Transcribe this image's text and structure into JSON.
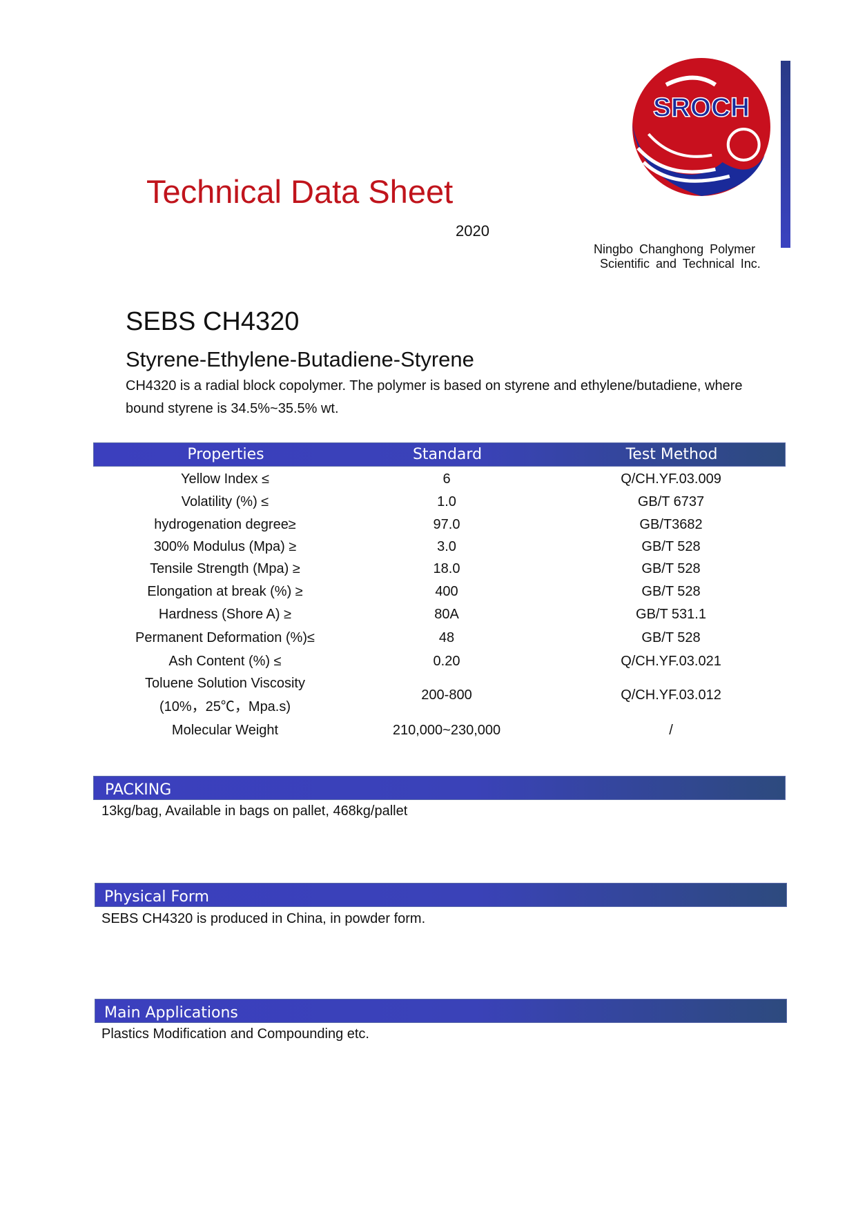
{
  "header": {
    "title": "Technical Data Sheet",
    "year": "2020",
    "company_line1": "Ningbo Changhong Polymer",
    "company_line2": "Scientific and Technical Inc.",
    "logo_text": "SROCH",
    "logo_colors": {
      "red": "#c8101e",
      "blue": "#1a2a9a"
    }
  },
  "product": {
    "name": "SEBS CH4320",
    "subtitle": "Styrene-Ethylene-Butadiene-Styrene",
    "description": "CH4320 is a radial block copolymer. The polymer is based on styrene and ethylene/butadiene, where bound styrene is 34.5%~35.5% wt."
  },
  "table": {
    "headers": [
      "Properties",
      "Standard",
      "Test Method"
    ],
    "rows": [
      [
        "Yellow Index ≤",
        "6",
        "Q/CH.YF.03.009"
      ],
      [
        "Volatility (%) ≤",
        "1.0",
        "GB/T 6737"
      ],
      [
        "hydrogenation degree≥",
        "97.0",
        "GB/T3682"
      ],
      [
        "300% Modulus (Mpa) ≥",
        "3.0",
        "GB/T 528"
      ],
      [
        "Tensile Strength (Mpa) ≥",
        "18.0",
        "GB/T 528"
      ],
      [
        "Elongation at break (%) ≥",
        "400",
        "GB/T 528"
      ],
      [
        "Hardness (Shore A) ≥",
        "80A",
        "GB/T 531.1"
      ],
      [
        "Permanent Deformation (%)≤",
        "48",
        "GB/T 528"
      ],
      [
        "Ash Content (%) ≤",
        "0.20",
        "Q/CH.YF.03.021"
      ],
      [
        "Toluene Solution Viscosity\n(10%，25℃，Mpa.s)",
        "200-800",
        "Q/CH.YF.03.012"
      ],
      [
        "Molecular Weight",
        "210,000~230,000",
        "/"
      ]
    ]
  },
  "sections": [
    {
      "title": "PACKING",
      "text": "13kg/bag, Available in bags on pallet, 468kg/pallet"
    },
    {
      "title": "Physical Form",
      "text": "SEBS CH4320 is produced in China, in powder form."
    },
    {
      "title": "Main Applications",
      "text": "Plastics Modification and Compounding etc."
    }
  ],
  "colors": {
    "title_red": "#c0141c",
    "bar_blue": "#3a40bd"
  }
}
